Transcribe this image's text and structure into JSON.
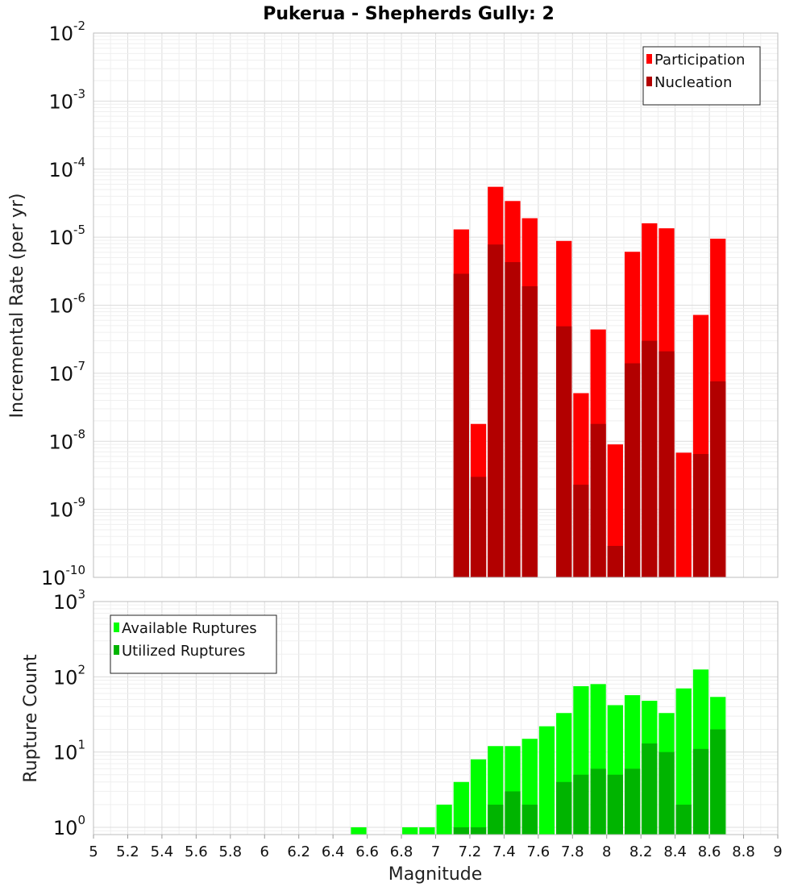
{
  "title": "Pukerua - Shepherds Gully: 2",
  "colors": {
    "participation": "#ff0000",
    "nucleation": "#b20000",
    "available": "#00ff00",
    "utilized": "#00b400"
  },
  "chart_data": [
    {
      "type": "bar",
      "panel": "top",
      "ylabel": "Incremental Rate (per yr)",
      "xlabel": "",
      "y_scale": "log",
      "ylim": [
        1e-10,
        0.01
      ],
      "xlim": [
        5,
        9
      ],
      "bar_width": 0.1,
      "legend_placement": "top-right",
      "grid": true,
      "y_ticks": [
        {
          "mant": "10",
          "exp": "-10",
          "value": 1e-10
        },
        {
          "mant": "10",
          "exp": "-9",
          "value": 1e-09
        },
        {
          "mant": "10",
          "exp": "-8",
          "value": 1e-08
        },
        {
          "mant": "10",
          "exp": "-7",
          "value": 1e-07
        },
        {
          "mant": "10",
          "exp": "-6",
          "value": 1e-06
        },
        {
          "mant": "10",
          "exp": "-5",
          "value": 1e-05
        },
        {
          "mant": "10",
          "exp": "-4",
          "value": 0.0001
        },
        {
          "mant": "10",
          "exp": "-3",
          "value": 0.001
        },
        {
          "mant": "10",
          "exp": "-2",
          "value": 0.01
        }
      ],
      "series": [
        {
          "name": "Participation",
          "color_key": "participation",
          "x": [
            7.15,
            7.25,
            7.35,
            7.45,
            7.55,
            7.75,
            7.85,
            7.95,
            8.05,
            8.15,
            8.25,
            8.35,
            8.45,
            8.55,
            8.65
          ],
          "values": [
            1.3e-05,
            1.8e-08,
            5.5e-05,
            3.4e-05,
            1.9e-05,
            8.8e-06,
            5.1e-08,
            4.4e-07,
            9e-09,
            6.1e-06,
            1.6e-05,
            1.35e-05,
            6.8e-09,
            7.2e-07,
            9.5e-06
          ]
        },
        {
          "name": "Nucleation",
          "color_key": "nucleation",
          "x": [
            7.15,
            7.25,
            7.35,
            7.45,
            7.55,
            7.75,
            7.85,
            7.95,
            8.05,
            8.15,
            8.25,
            8.35,
            8.55,
            8.65
          ],
          "values": [
            2.9e-06,
            3e-09,
            7.8e-06,
            4.3e-06,
            1.9e-06,
            4.9e-07,
            2.3e-09,
            1.8e-08,
            2.9e-10,
            1.4e-07,
            3e-07,
            2.1e-07,
            6.5e-09,
            7.6e-08
          ]
        }
      ]
    },
    {
      "type": "bar",
      "panel": "bottom",
      "ylabel": "Rupture Count",
      "xlabel": "Magnitude",
      "y_scale": "log",
      "ylim": [
        0.8,
        1000
      ],
      "xlim": [
        5,
        9
      ],
      "bar_width": 0.1,
      "legend_placement": "top-left",
      "grid": true,
      "y_ticks": [
        {
          "mant": "10",
          "exp": "0",
          "value": 1
        },
        {
          "mant": "10",
          "exp": "1",
          "value": 10
        },
        {
          "mant": "10",
          "exp": "2",
          "value": 100
        },
        {
          "mant": "10",
          "exp": "3",
          "value": 1000
        }
      ],
      "x_ticks": [
        "5",
        "5.2",
        "5.4",
        "5.6",
        "5.8",
        "6",
        "6.2",
        "6.4",
        "6.6",
        "6.8",
        "7",
        "7.2",
        "7.4",
        "7.6",
        "7.8",
        "8",
        "8.2",
        "8.4",
        "8.6",
        "8.8",
        "9"
      ],
      "series": [
        {
          "name": "Available Ruptures",
          "color_key": "available",
          "x": [
            6.55,
            6.85,
            6.95,
            7.05,
            7.15,
            7.25,
            7.35,
            7.45,
            7.55,
            7.65,
            7.75,
            7.85,
            7.95,
            8.05,
            8.15,
            8.25,
            8.35,
            8.45,
            8.55,
            8.65
          ],
          "values": [
            1,
            1,
            1,
            2,
            4,
            8,
            12,
            12,
            15,
            22,
            33,
            75,
            80,
            42,
            57,
            48,
            33,
            70,
            125,
            54
          ]
        },
        {
          "name": "Utilized Ruptures",
          "color_key": "utilized",
          "x": [
            7.15,
            7.25,
            7.35,
            7.45,
            7.55,
            7.75,
            7.85,
            7.95,
            8.05,
            8.15,
            8.25,
            8.35,
            8.45,
            8.55,
            8.65
          ],
          "values": [
            1,
            1,
            2,
            3,
            2,
            4,
            5,
            6,
            5,
            6,
            13,
            10,
            2,
            11,
            20
          ]
        }
      ]
    }
  ]
}
